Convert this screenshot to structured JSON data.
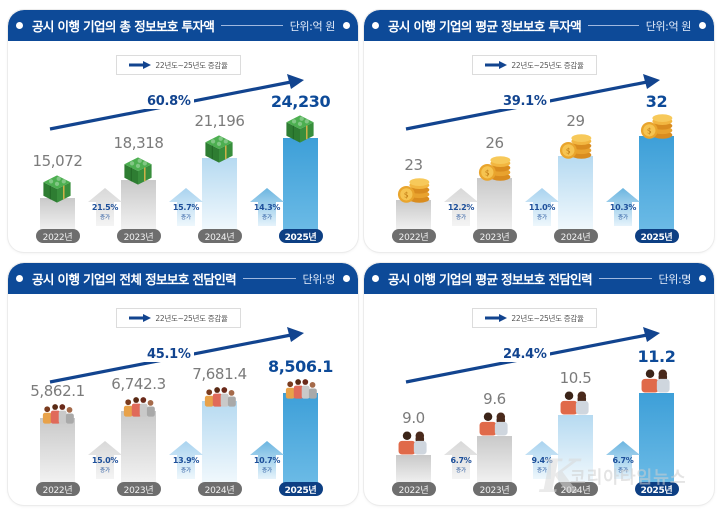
{
  "legend_label": "22년도~25년도 증감율",
  "increase_word": "증가",
  "colors": {
    "header_bg": "#0d4a98",
    "trend_arrow": "#12448f",
    "bar_past": "#c9c9c9",
    "bar_2024": "#b6daf1",
    "bar_2025": "#3d9fd8",
    "year_pill": "#6e6e6e",
    "year_pill_highlight": "#0d3f83"
  },
  "panels": [
    {
      "title": "공시 이행 기업의 총 정보보호 투자액",
      "unit": "단위:억 원",
      "icon": "money-stack-icon",
      "overall_change": "60.8%",
      "years": [
        "2022년",
        "2023년",
        "2024년",
        "2025년"
      ],
      "values": [
        "15,072",
        "18,318",
        "21,196",
        "24,230"
      ],
      "increases": [
        "21.5%",
        "15.7%",
        "14.3%"
      ]
    },
    {
      "title": "공시 이행 기업의 평균 정보보호 투자액",
      "unit": "단위:억 원",
      "icon": "coin-stack-icon",
      "overall_change": "39.1%",
      "years": [
        "2022년",
        "2023년",
        "2024년",
        "2025년"
      ],
      "values": [
        "23",
        "26",
        "29",
        "32"
      ],
      "increases": [
        "12.2%",
        "11.0%",
        "10.3%"
      ]
    },
    {
      "title": "공시 이행 기업의 전체 정보보호 전담인력",
      "unit": "단위:명",
      "icon": "people-group-icon",
      "overall_change": "45.1%",
      "years": [
        "2022년",
        "2023년",
        "2024년",
        "2025년"
      ],
      "values": [
        "5,862.1",
        "6,742.3",
        "7,681.4",
        "8,506.1"
      ],
      "increases": [
        "15.0%",
        "13.9%",
        "10.7%"
      ]
    },
    {
      "title": "공시 이행 기업의 평균 정보보호 전담인력",
      "unit": "단위:명",
      "icon": "people-pair-icon",
      "overall_change": "24.4%",
      "years": [
        "2022년",
        "2023년",
        "2024년",
        "2025년"
      ],
      "values": [
        "9.0",
        "9.6",
        "10.5",
        "11.2"
      ],
      "increases": [
        "6.7%",
        "9.4%",
        "6.7%"
      ]
    }
  ],
  "watermark": {
    "letter": "K",
    "text": "코리아타임뉴스"
  },
  "chart_data": [
    {
      "type": "bar",
      "title": "공시 이행 기업의 총 정보보호 투자액",
      "unit": "억 원",
      "categories": [
        "2022년",
        "2023년",
        "2024년",
        "2025년"
      ],
      "values": [
        15072,
        18318,
        21196,
        24230
      ],
      "year_over_year_increase_pct": [
        21.5,
        15.7,
        14.3
      ],
      "overall_change_2022_2025_pct": 60.8,
      "legend": [
        "22년도~25년도 증감율"
      ],
      "grid": false
    },
    {
      "type": "bar",
      "title": "공시 이행 기업의 평균 정보보호 투자액",
      "unit": "억 원",
      "categories": [
        "2022년",
        "2023년",
        "2024년",
        "2025년"
      ],
      "values": [
        23,
        26,
        29,
        32
      ],
      "year_over_year_increase_pct": [
        12.2,
        11.0,
        10.3
      ],
      "overall_change_2022_2025_pct": 39.1,
      "legend": [
        "22년도~25년도 증감율"
      ],
      "grid": false
    },
    {
      "type": "bar",
      "title": "공시 이행 기업의 전체 정보보호 전담인력",
      "unit": "명",
      "categories": [
        "2022년",
        "2023년",
        "2024년",
        "2025년"
      ],
      "values": [
        5862.1,
        6742.3,
        7681.4,
        8506.1
      ],
      "year_over_year_increase_pct": [
        15.0,
        13.9,
        10.7
      ],
      "overall_change_2022_2025_pct": 45.1,
      "legend": [
        "22년도~25년도 증감율"
      ],
      "grid": false
    },
    {
      "type": "bar",
      "title": "공시 이행 기업의 평균 정보보호 전담인력",
      "unit": "명",
      "categories": [
        "2022년",
        "2023년",
        "2024년",
        "2025년"
      ],
      "values": [
        9.0,
        9.6,
        10.5,
        11.2
      ],
      "year_over_year_increase_pct": [
        6.7,
        9.4,
        6.7
      ],
      "overall_change_2022_2025_pct": 24.4,
      "legend": [
        "22년도~25년도 증감율"
      ],
      "grid": false
    }
  ]
}
